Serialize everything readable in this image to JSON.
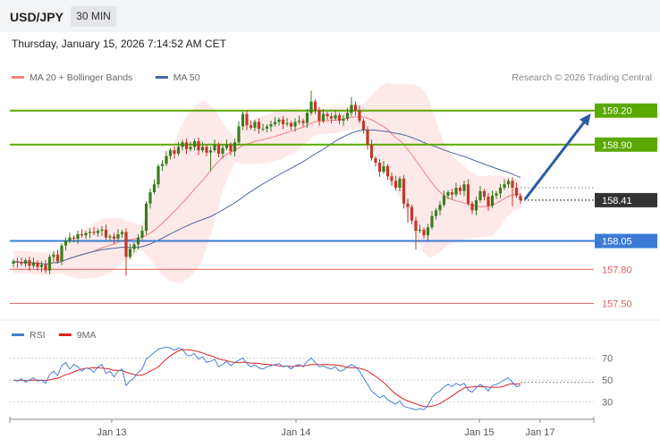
{
  "header": {
    "pair": "USD/JPY",
    "timeframe": "30 MIN"
  },
  "datetime": "Thursday, January 15, 2026 7:14:52 AM CET",
  "colors": {
    "ma20": "#f08080",
    "band_fill": "#fde2e2",
    "ma50": "#4a66a0",
    "resistance": "#5aa800",
    "support": "#3a7bd5",
    "minor": "#e06060",
    "up_candle": "#3a7d1e",
    "down_candle": "#c0392b",
    "arrow": "#2d5aa6",
    "current": "#333333",
    "rsi": "#4a7fd6",
    "rsi_ma": "#e02020"
  },
  "chart_data": [
    {
      "type": "candlestick",
      "legend": [
        {
          "name": "MA 20 + Bollinger Bands",
          "color": "#f08080"
        },
        {
          "name": "MA 50",
          "color": "#4a66a0"
        }
      ],
      "credit": "Research © 2026 Trading Central",
      "ylim": [
        157.4,
        159.45
      ],
      "xlabels": [
        "Jan 13",
        "Jan 14",
        "Jan 15",
        "Jan 17"
      ],
      "levels": [
        {
          "value": 159.2,
          "label": "159.20",
          "kind": "resistance"
        },
        {
          "value": 158.9,
          "label": "158.90",
          "kind": "resistance"
        },
        {
          "value": 158.05,
          "label": "158.05",
          "kind": "support"
        },
        {
          "value": 157.8,
          "label": "157.80",
          "kind": "minor"
        },
        {
          "value": 157.5,
          "label": "157.50",
          "kind": "minor"
        }
      ],
      "current_price": {
        "value": 158.41,
        "label": "158.41"
      },
      "projection": {
        "from": 158.41,
        "to": 159.2
      },
      "closes": [
        157.87,
        157.86,
        157.85,
        157.88,
        157.83,
        157.86,
        157.82,
        157.84,
        157.79,
        157.91,
        157.93,
        157.87,
        158.01,
        158.05,
        158.08,
        158.07,
        158.11,
        158.1,
        158.12,
        158.13,
        158.12,
        158.14,
        158.15,
        158.08,
        158.09,
        158.07,
        158.11,
        158.13,
        157.91,
        157.98,
        158.02,
        158.08,
        158.14,
        158.38,
        158.48,
        158.55,
        158.71,
        158.73,
        158.8,
        158.85,
        158.82,
        158.88,
        158.92,
        158.86,
        158.88,
        158.93,
        158.85,
        158.88,
        158.83,
        158.85,
        158.9,
        158.82,
        158.87,
        158.9,
        158.84,
        158.92,
        159.06,
        159.17,
        159.07,
        159.05,
        159.1,
        159.04,
        159.04,
        159.06,
        159.08,
        159.1,
        159.12,
        159.08,
        159.09,
        159.06,
        159.1,
        159.11,
        159.09,
        159.18,
        159.28,
        159.2,
        159.11,
        159.17,
        159.15,
        159.13,
        159.16,
        159.11,
        159.13,
        159.18,
        159.25,
        159.2,
        159.11,
        159.03,
        158.9,
        158.78,
        158.74,
        158.66,
        158.71,
        158.62,
        158.58,
        158.52,
        158.6,
        158.38,
        158.35,
        158.23,
        158.14,
        158.15,
        158.1,
        158.17,
        158.27,
        158.32,
        158.37,
        158.45,
        158.48,
        158.46,
        158.52,
        158.49,
        158.55,
        158.38,
        158.32,
        158.41,
        158.49,
        158.44,
        158.36,
        158.45,
        158.47,
        158.52,
        158.55,
        158.58,
        158.52,
        158.45,
        158.41
      ]
    },
    {
      "type": "line",
      "legend": [
        {
          "name": "RSI",
          "color": "#4a7fd6"
        },
        {
          "name": "9MA",
          "color": "#e02020"
        }
      ],
      "ylim": [
        20,
        85
      ],
      "yticks": [
        70,
        50,
        30
      ],
      "reference_value": 48,
      "rsi": [
        50,
        49,
        51,
        48,
        50,
        52,
        49,
        50,
        47,
        55,
        58,
        54,
        63,
        66,
        60,
        64,
        62,
        58,
        61,
        60,
        57,
        62,
        64,
        56,
        58,
        53,
        58,
        60,
        45,
        49,
        52,
        57,
        60,
        69,
        72,
        75,
        78,
        79,
        80,
        79,
        77,
        79,
        78,
        73,
        72,
        74,
        69,
        71,
        66,
        67,
        69,
        62,
        64,
        67,
        63,
        66,
        68,
        70,
        65,
        62,
        64,
        61,
        60,
        62,
        63,
        64,
        65,
        62,
        63,
        60,
        63,
        64,
        62,
        67,
        70,
        66,
        62,
        63,
        61,
        60,
        62,
        58,
        59,
        62,
        64,
        62,
        58,
        52,
        46,
        40,
        37,
        34,
        36,
        32,
        30,
        28,
        31,
        26,
        25,
        24,
        23,
        24,
        23,
        27,
        34,
        38,
        40,
        44,
        46,
        44,
        47,
        45,
        47,
        41,
        39,
        43,
        46,
        44,
        40,
        45,
        46,
        48,
        50,
        52,
        48,
        44,
        45
      ]
    }
  ]
}
